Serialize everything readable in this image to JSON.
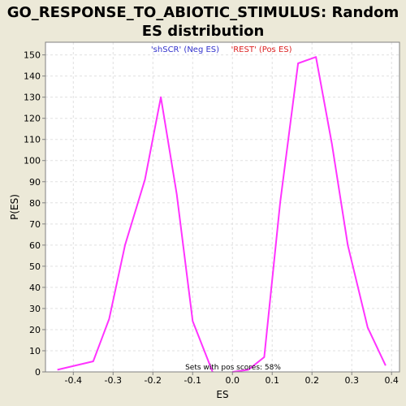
{
  "chart_data": {
    "type": "line",
    "title": "GO_RESPONSE_TO_ABIOTIC_STIMULUS: Random ES distribution",
    "xlabel": "ES",
    "ylabel": "P(ES)",
    "xlim": [
      -0.47,
      0.42
    ],
    "ylim": [
      0,
      156
    ],
    "xticks": [
      -0.4,
      -0.3,
      -0.2,
      -0.1,
      0.0,
      0.1,
      0.2,
      0.3,
      0.4
    ],
    "xtick_labels": [
      "-0.4",
      "-0.3",
      "-0.2",
      "-0.1",
      "0.0",
      "0.1",
      "0.2",
      "0.3",
      "0.4"
    ],
    "yticks": [
      0,
      10,
      20,
      30,
      40,
      50,
      60,
      70,
      80,
      90,
      100,
      110,
      120,
      130,
      140,
      150
    ],
    "ytick_labels": [
      "0",
      "10",
      "20",
      "30",
      "40",
      "50",
      "60",
      "70",
      "80",
      "90",
      "100",
      "110",
      "120",
      "130",
      "140",
      "150"
    ],
    "grid": true,
    "series": [
      {
        "name": "'shSCR' (Neg ES)",
        "color": "#ff33ff",
        "x": [
          -0.44,
          -0.35,
          -0.31,
          -0.27,
          -0.22,
          -0.18,
          -0.14,
          -0.1,
          -0.05
        ],
        "y": [
          1,
          5,
          25,
          60,
          91,
          130,
          84,
          24,
          0
        ]
      },
      {
        "name": "'REST' (Pos ES)",
        "color": "#ff33ff",
        "x": [
          0.0,
          0.04,
          0.08,
          0.12,
          0.165,
          0.21,
          0.25,
          0.29,
          0.34,
          0.385
        ],
        "y": [
          0,
          1,
          7,
          80,
          146,
          149,
          108,
          60,
          21,
          3
        ]
      }
    ],
    "legend": [
      {
        "label": "'shSCR' (Neg ES)",
        "color": "#3333cc"
      },
      {
        "label": "'REST' (Pos ES)",
        "color": "#dd2222"
      }
    ],
    "legend_position": "top-center",
    "annotation": "Sets with pos scores: 58%"
  }
}
